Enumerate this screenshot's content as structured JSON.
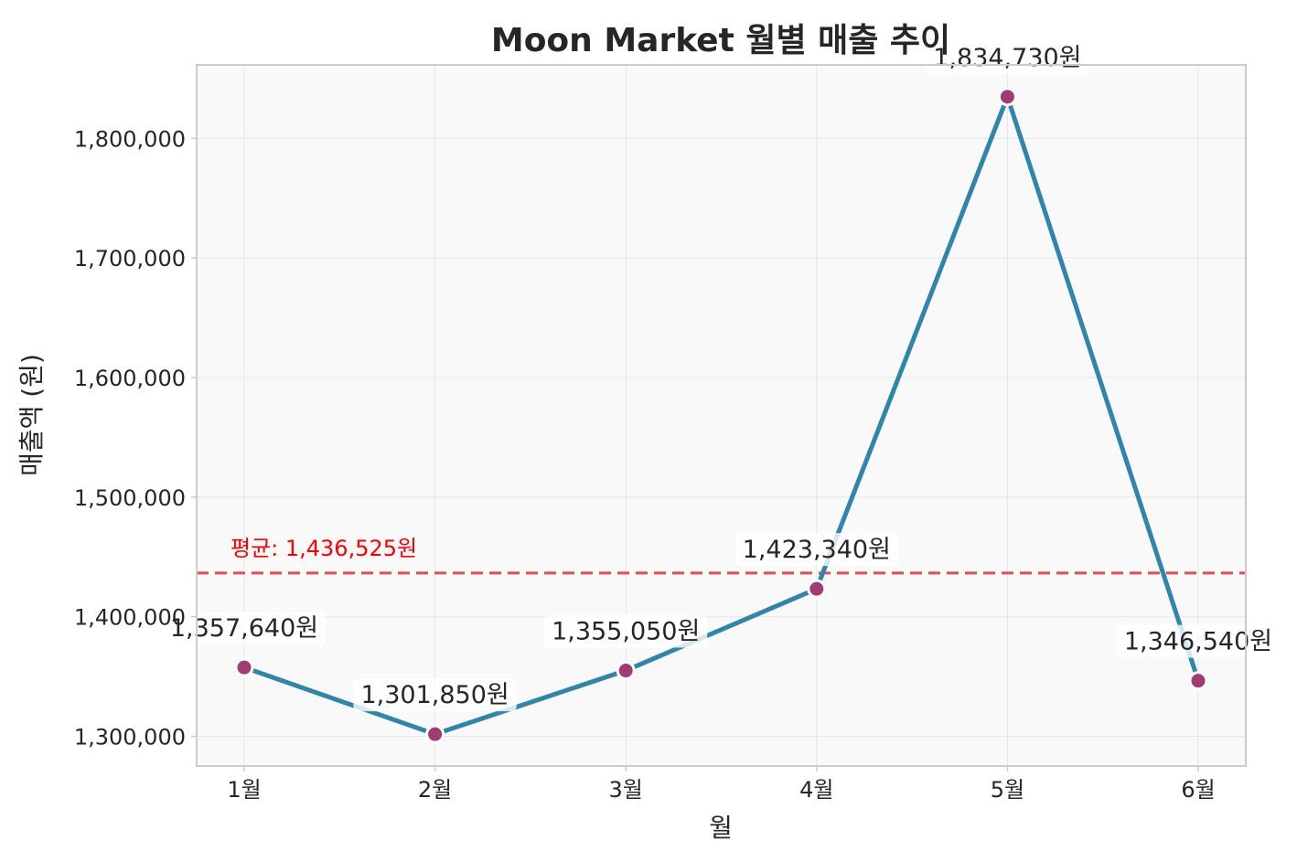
{
  "chart_data": {
    "type": "line",
    "title": "Moon Market 월별 매출 추이",
    "xlabel": "월",
    "ylabel": "매출액 (원)",
    "categories": [
      "1월",
      "2월",
      "3월",
      "4월",
      "5월",
      "6월"
    ],
    "values": [
      1357640,
      1301850,
      1355050,
      1423340,
      1834730,
      1346540
    ],
    "data_labels": [
      "1,357,640원",
      "1,301,850원",
      "1,355,050원",
      "1,423,340원",
      "1,834,730원",
      "1,346,540원"
    ],
    "y_ticks": [
      1300000,
      1400000,
      1500000,
      1600000,
      1700000,
      1800000
    ],
    "y_tick_labels": [
      "1,300,000",
      "1,400,000",
      "1,500,000",
      "1,600,000",
      "1,700,000",
      "1,800,000"
    ],
    "ylim": [
      1275206,
      1861374
    ],
    "average": {
      "value": 1436525,
      "label": "평균: 1,436,525원"
    },
    "grid": true,
    "colors": {
      "line": "#2e86ab",
      "marker": "#a23b72",
      "average_line": "#e84a4f",
      "average_label": "#ff0000",
      "plot_background": "#f9f9fa",
      "grid": "#e6e6e6",
      "frame": "#cccccc",
      "text": "#262626"
    }
  }
}
